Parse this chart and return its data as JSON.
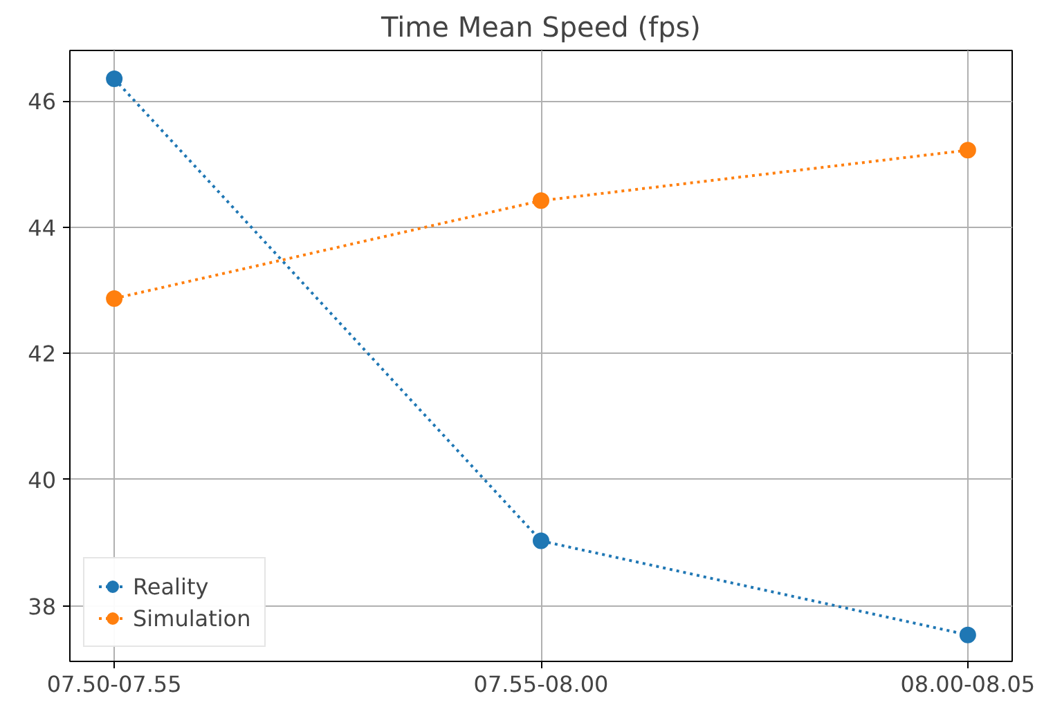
{
  "chart_data": {
    "type": "line",
    "title": "Time Mean Speed (fps)",
    "categories": [
      "07.50-07.55",
      "07.55-08.00",
      "08.00-08.05"
    ],
    "series": [
      {
        "name": "Reality",
        "color": "#1f77b4",
        "values": [
          46.35,
          39.03,
          37.54
        ]
      },
      {
        "name": "Simulation",
        "color": "#ff7f0e",
        "values": [
          42.87,
          44.42,
          45.22
        ]
      }
    ],
    "ylim": [
      37.12,
      46.8
    ],
    "yticks": [
      38,
      40,
      42,
      44,
      46
    ],
    "grid": true,
    "legend": "bottom left",
    "marker": "circle",
    "line_style": "dotted"
  }
}
